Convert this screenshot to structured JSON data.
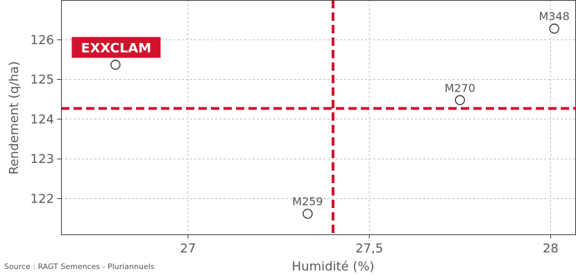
{
  "chart_data": {
    "type": "scatter",
    "xlabel": "Humidité (%)",
    "ylabel": "Rendement (q/ha)",
    "xlim": [
      26.65,
      28.07
    ],
    "ylim": [
      121.1,
      127.0
    ],
    "x_ticks": [
      27,
      27.5,
      28
    ],
    "x_tick_labels": [
      "27",
      "27,5",
      "28"
    ],
    "y_ticks": [
      122,
      123,
      124,
      125,
      126
    ],
    "y_tick_labels": [
      "122",
      "123",
      "124",
      "125",
      "126"
    ],
    "grid": true,
    "reference_lines": {
      "x": 27.4,
      "y": 124.27,
      "color": "#d0122c"
    },
    "points": [
      {
        "label": "EXXCLAM",
        "x": 26.8,
        "y": 125.37,
        "highlight": true
      },
      {
        "label": "M259",
        "x": 27.33,
        "y": 121.62,
        "highlight": false
      },
      {
        "label": "M270",
        "x": 27.75,
        "y": 124.48,
        "highlight": false
      },
      {
        "label": "M348",
        "x": 28.01,
        "y": 126.28,
        "highlight": false
      }
    ],
    "colors": {
      "highlight": "#d0122c",
      "marker": "#333333",
      "grid": "#bbbbbb"
    }
  },
  "footer": {
    "source": "Source : RAGT Semences - Pluriannuels"
  }
}
